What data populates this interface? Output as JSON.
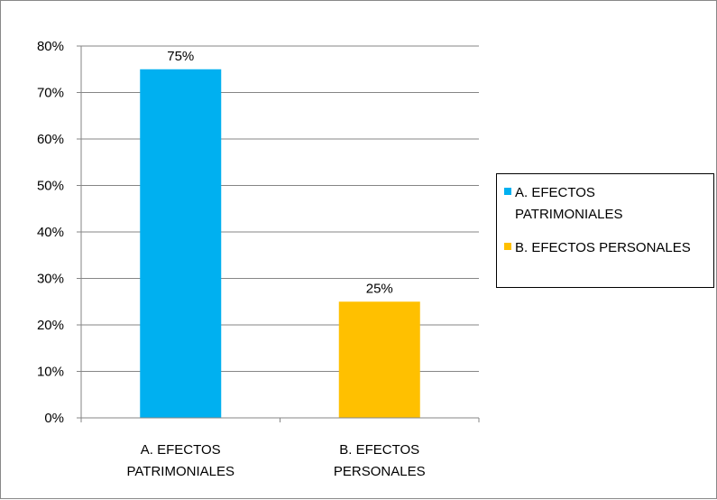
{
  "chart_data": {
    "type": "bar",
    "categories": [
      "A. EFECTOS PATRIMONIALES",
      "B. EFECTOS PERSONALES"
    ],
    "category_tick_lines": [
      [
        "A. EFECTOS",
        "PATRIMONIALES"
      ],
      [
        "B. EFECTOS",
        "PERSONALES"
      ]
    ],
    "values": [
      75,
      25
    ],
    "data_labels": [
      "75%",
      "25%"
    ],
    "colors": [
      "#00B0F0",
      "#FFC000"
    ],
    "yticks": [
      "0%",
      "10%",
      "20%",
      "30%",
      "40%",
      "50%",
      "60%",
      "70%",
      "80%"
    ],
    "ylim": [
      0,
      80
    ],
    "title": "",
    "xlabel": "",
    "ylabel": "",
    "grid": true,
    "legend": {
      "position": "right",
      "entries": [
        {
          "lines": [
            "A. EFECTOS",
            "PATRIMONIALES"
          ],
          "color": "#00B0F0"
        },
        {
          "lines": [
            "B. EFECTOS PERSONALES"
          ],
          "color": "#FFC000"
        }
      ]
    }
  }
}
